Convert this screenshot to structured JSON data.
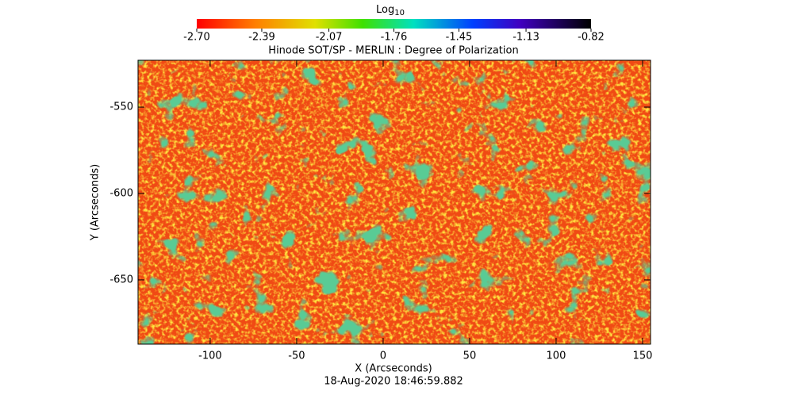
{
  "chart_data": {
    "type": "heatmap",
    "title": "Hinode SOT/SP - MERLIN : Degree of Polarization",
    "colorbar_label": "Log",
    "colorbar_label_sub": "10",
    "colorbar_lim": [
      -2.7,
      -0.82
    ],
    "colorbar_ticks": [
      {
        "value": -2.7,
        "label": "-2.70"
      },
      -2.39,
      -2.07,
      -1.76,
      -1.45,
      -1.13,
      -0.82
    ],
    "x_label": "X (Arcseconds)",
    "y_label": "Y (Arcseconds)",
    "xlim": [
      -141.7,
      154.6
    ],
    "xticks": [
      -100,
      -50,
      0,
      50,
      100,
      150
    ],
    "ylim": [
      -687.2,
      -522.9
    ],
    "yticks": [
      -550,
      -600,
      -650
    ],
    "footer": "18-Aug-2020 18:46:59.882"
  }
}
